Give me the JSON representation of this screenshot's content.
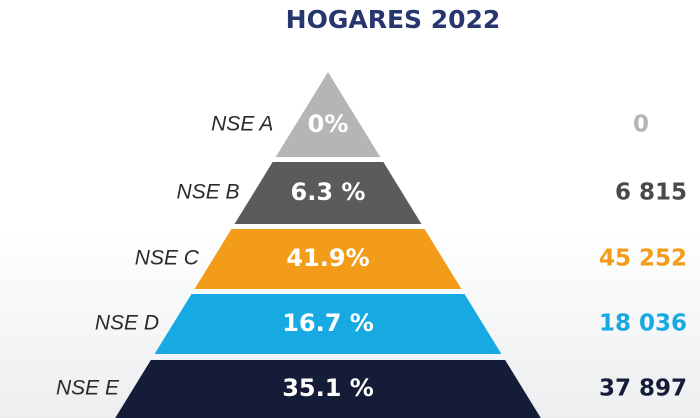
{
  "title": "HOGARES 2022",
  "levels": [
    {
      "label": "NSE A",
      "share": "0%",
      "households": "0",
      "color": "#b5b5b5",
      "text_color": "#b5b5b5"
    },
    {
      "label": "NSE B",
      "share": "6.3 %",
      "households": "6 815",
      "color": "#5b5b5b",
      "text_color": "#4a4a4a"
    },
    {
      "label": "NSE C",
      "share": "41.9%",
      "households": "45 252",
      "color": "#f39c1a",
      "text_color": "#f39c1a"
    },
    {
      "label": "NSE D",
      "share": "16.7 %",
      "households": "18 036",
      "color": "#17a9e1",
      "text_color": "#17a9e1"
    },
    {
      "label": "NSE E",
      "share": "35.1 %",
      "households": "37 897",
      "color": "#141c38",
      "text_color": "#141c38"
    }
  ]
}
